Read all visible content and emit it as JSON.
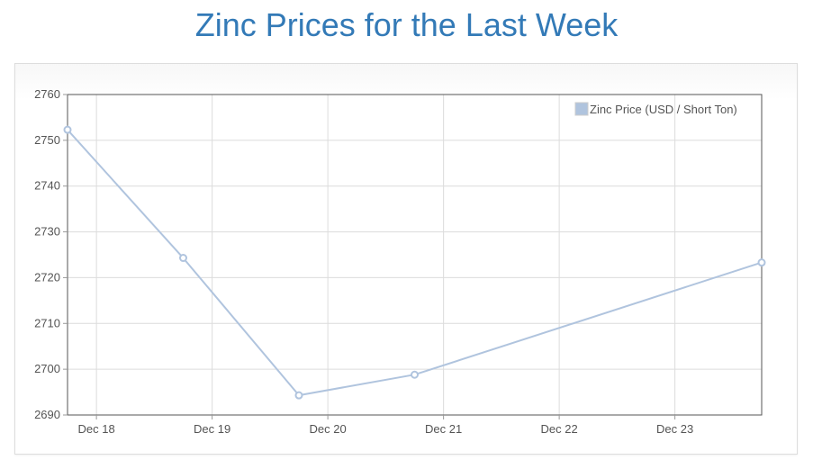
{
  "page": {
    "title": "Zinc Prices for the Last Week"
  },
  "chart_data": {
    "type": "line",
    "title": "Zinc Prices for the Last Week",
    "xlabel": "",
    "ylabel": "",
    "x_tick_labels": [
      "Dec 18",
      "Dec 19",
      "Dec 20",
      "Dec 21",
      "Dec 22",
      "Dec 23"
    ],
    "ylim": [
      2690,
      2760
    ],
    "y_ticks": [
      2690,
      2700,
      2710,
      2720,
      2730,
      2740,
      2750,
      2760
    ],
    "grid": true,
    "legend": {
      "position": "top-right"
    },
    "series": [
      {
        "name": "Zinc Price (USD / Short Ton)",
        "color": "#b0c4de",
        "points": [
          {
            "x": "Dec 17, 18:00",
            "y": 2752.3
          },
          {
            "x": "Dec 18, 18:00",
            "y": 2724.3
          },
          {
            "x": "Dec 19, 18:00",
            "y": 2694.3
          },
          {
            "x": "Dec 20, 18:00",
            "y": 2698.8
          },
          {
            "x": "Dec 23, 18:00",
            "y": 2723.3
          }
        ]
      }
    ]
  }
}
